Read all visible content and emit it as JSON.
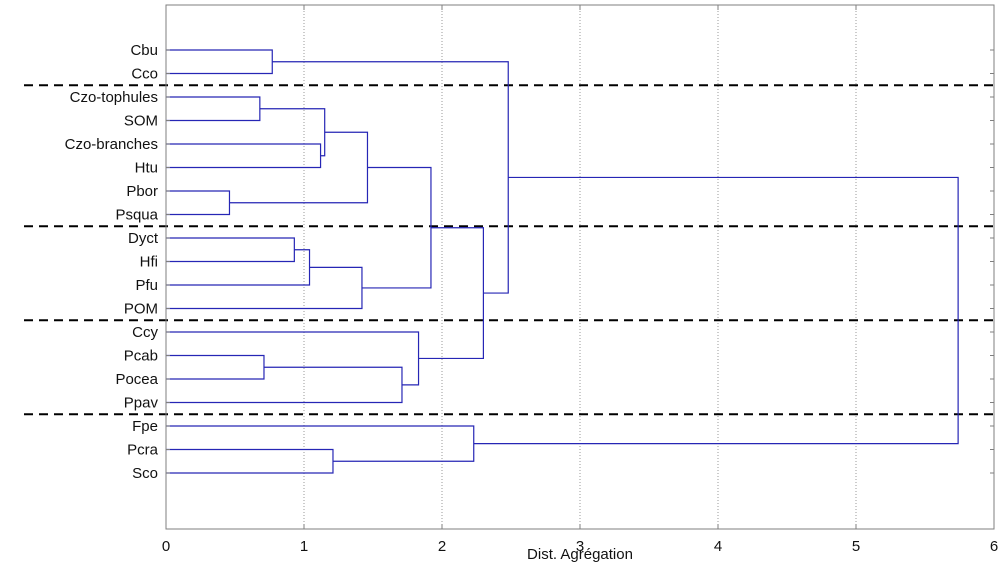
{
  "chart_data": {
    "type": "dendrogram",
    "orientation": "horizontal",
    "xlabel": "Dist. Agrégation",
    "xlim": [
      0,
      6
    ],
    "xticks": [
      0,
      1,
      2,
      3,
      4,
      5,
      6
    ],
    "grid": "vertical dotted",
    "leaves": [
      "Cbu",
      "Cco",
      "Czo-tophules",
      "SOM",
      "Czo-branches",
      "Htu",
      "Pbor",
      "Psqua",
      "Dyct",
      "Hfi",
      "Pfu",
      "POM",
      "Ccy",
      "Pcab",
      "Pocea",
      "Ppav",
      "Fpe",
      "Pcra",
      "Sco"
    ],
    "merges": [
      {
        "id": "m1",
        "left": "Pbor",
        "right": "Psqua",
        "height": 0.46
      },
      {
        "id": "m2",
        "left": "Czo-tophules",
        "right": "SOM",
        "height": 0.68
      },
      {
        "id": "m3",
        "left": "Pcab",
        "right": "Pocea",
        "height": 0.71
      },
      {
        "id": "m4",
        "left": "Cbu",
        "right": "Cco",
        "height": 0.77
      },
      {
        "id": "m5",
        "left": "Dyct",
        "right": "Hfi",
        "height": 0.93
      },
      {
        "id": "m6",
        "left": "m5",
        "right": "Pfu",
        "height": 1.04
      },
      {
        "id": "m7",
        "left": "Czo-branches",
        "right": "Htu",
        "height": 1.12
      },
      {
        "id": "m8",
        "left": "m2",
        "right": "m7",
        "height": 1.15
      },
      {
        "id": "m9",
        "left": "Pcra",
        "right": "Sco",
        "height": 1.21
      },
      {
        "id": "m10",
        "left": "m6",
        "right": "POM",
        "height": 1.42
      },
      {
        "id": "m11",
        "left": "m8",
        "right": "m1",
        "height": 1.46
      },
      {
        "id": "m12",
        "left": "m3",
        "right": "Ppav",
        "height": 1.71
      },
      {
        "id": "m13",
        "left": "Ccy",
        "right": "m12",
        "height": 1.83
      },
      {
        "id": "m14",
        "left": "m11",
        "right": "m10",
        "height": 1.92
      },
      {
        "id": "m15",
        "left": "Fpe",
        "right": "m9",
        "height": 2.23
      },
      {
        "id": "m16",
        "left": "m14",
        "right": "m13",
        "height": 2.3
      },
      {
        "id": "m17",
        "left": "m4",
        "right": "m16",
        "height": 2.48
      },
      {
        "id": "m18",
        "left": "m17",
        "right": "m15",
        "height": 5.74
      }
    ],
    "group_separators_after_leaf": [
      "Cco",
      "Psqua",
      "POM",
      "Ppav"
    ],
    "colors": {
      "branch": "#2626b5",
      "frame": "#7f7f7f",
      "grid": "#9a9a9a",
      "separator": "#000000",
      "text": "#111111"
    }
  }
}
